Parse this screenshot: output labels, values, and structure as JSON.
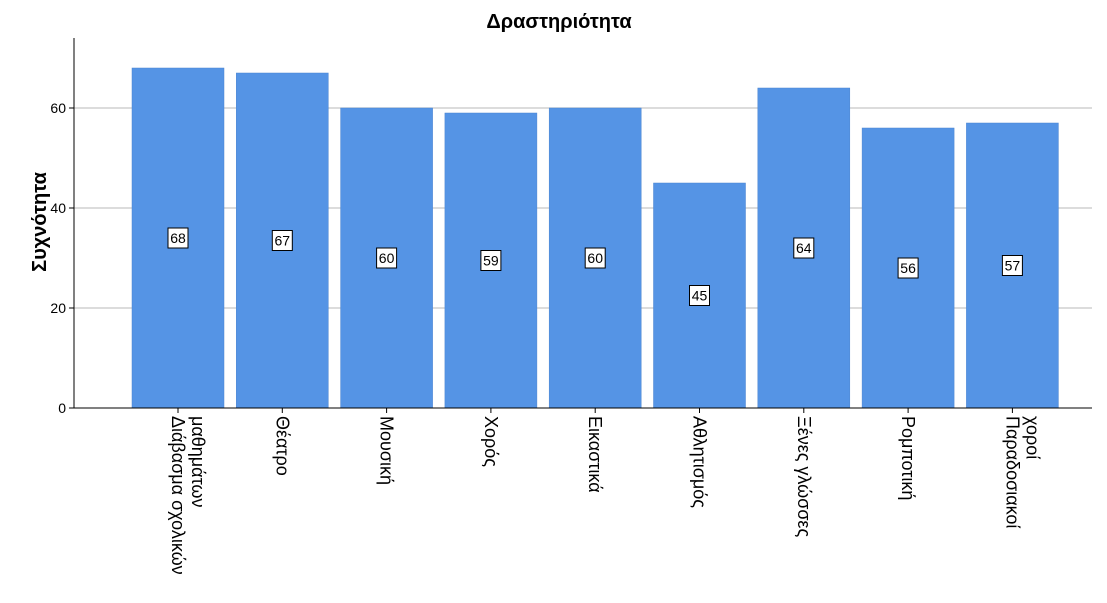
{
  "chart_data": {
    "type": "bar",
    "title": "Δραστηριότητα",
    "xlabel": "",
    "ylabel": "Συχνότητα",
    "categories": [
      "Διάβασμα σχολικών μαθημάτων",
      "Θέατρο",
      "Μουσική",
      "Χορός",
      "Εικαστικά",
      "Αθλητισμός",
      "Ξένες γλώσσες",
      "Ρομποτική",
      "Παραδοσιακοί χοροί"
    ],
    "values": [
      68,
      67,
      60,
      59,
      60,
      45,
      64,
      56,
      57
    ],
    "ylim": [
      0,
      74
    ],
    "yticks": [
      0,
      20,
      40,
      60
    ],
    "grid": true,
    "bar_color": "#5594e5",
    "legend": "none"
  }
}
